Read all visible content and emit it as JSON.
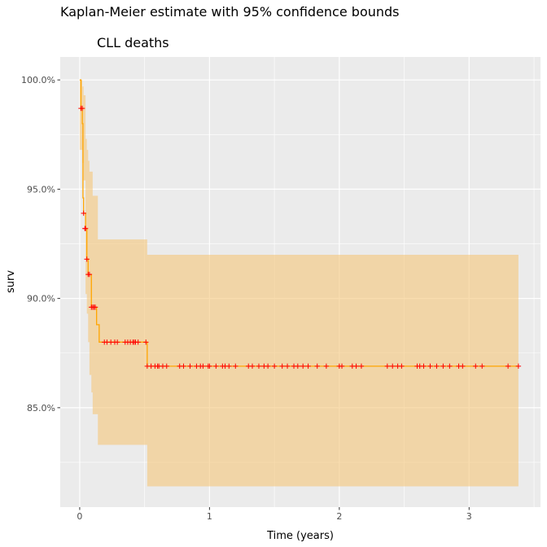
{
  "chart_data": {
    "type": "line",
    "title": "Kaplan-Meier estimate with 95% confidence bounds",
    "subtitle": "CLL deaths",
    "xlabel": "Time (years)",
    "ylabel": "surv",
    "xlim": [
      -0.15,
      3.55
    ],
    "ylim": [
      0.8045,
      1.0105
    ],
    "x_ticks": [
      0,
      1,
      2,
      3
    ],
    "x_tick_labels": [
      "0",
      "1",
      "2",
      "3"
    ],
    "y_ticks": [
      0.85,
      0.9,
      0.95,
      1.0
    ],
    "y_tick_labels": [
      "85.0%",
      "90.0%",
      "95.0%",
      "100.0%"
    ],
    "grid": true,
    "legend": "none",
    "colors": {
      "panel": "#ebebeb",
      "grid": "#ffffff",
      "line": "#ffa500",
      "band": "#f5c77a",
      "censor": "#ff0000"
    },
    "series": [
      {
        "kind": "step",
        "points": [
          [
            0.0,
            1.0
          ],
          [
            0.01,
            0.987
          ],
          [
            0.02,
            0.98
          ],
          [
            0.025,
            0.946
          ],
          [
            0.03,
            0.939
          ],
          [
            0.045,
            0.932
          ],
          [
            0.055,
            0.918
          ],
          [
            0.065,
            0.911
          ],
          [
            0.09,
            0.896
          ],
          [
            0.13,
            0.888
          ],
          [
            0.15,
            0.88
          ],
          [
            0.52,
            0.869
          ],
          [
            3.38,
            0.869
          ]
        ]
      }
    ],
    "confidence_band": [
      [
        0.0,
        0.968,
        1.0
      ],
      [
        0.02,
        0.962,
        0.997
      ],
      [
        0.03,
        0.954,
        0.993
      ],
      [
        0.045,
        0.902,
        0.973
      ],
      [
        0.055,
        0.893,
        0.968
      ],
      [
        0.065,
        0.88,
        0.963
      ],
      [
        0.075,
        0.865,
        0.958
      ],
      [
        0.09,
        0.857,
        0.958
      ],
      [
        0.1,
        0.847,
        0.947
      ],
      [
        0.14,
        0.833,
        0.927
      ],
      [
        0.52,
        0.814,
        0.92
      ],
      [
        3.38,
        0.814,
        0.92
      ]
    ],
    "censored": {
      "x": [
        0.01,
        0.02,
        0.03,
        0.04,
        0.045,
        0.055,
        0.065,
        0.075,
        0.09,
        0.1,
        0.11,
        0.12,
        0.19,
        0.21,
        0.24,
        0.27,
        0.29,
        0.35,
        0.37,
        0.39,
        0.41,
        0.42,
        0.43,
        0.45,
        0.51,
        0.52,
        0.55,
        0.58,
        0.6,
        0.61,
        0.64,
        0.67,
        0.77,
        0.8,
        0.85,
        0.9,
        0.93,
        0.95,
        0.99,
        1.0,
        1.05,
        1.1,
        1.12,
        1.15,
        1.2,
        1.3,
        1.33,
        1.38,
        1.42,
        1.45,
        1.5,
        1.56,
        1.6,
        1.65,
        1.68,
        1.72,
        1.76,
        1.83,
        1.9,
        2.0,
        2.02,
        2.1,
        2.13,
        2.17,
        2.37,
        2.41,
        2.45,
        2.48,
        2.6,
        2.62,
        2.65,
        2.7,
        2.75,
        2.8,
        2.85,
        2.92,
        2.95,
        3.05,
        3.1,
        3.3,
        3.38
      ],
      "y": [
        0.987,
        0.987,
        0.939,
        0.932,
        0.932,
        0.918,
        0.911,
        0.911,
        0.896,
        0.896,
        0.896,
        0.896,
        0.88,
        0.88,
        0.88,
        0.88,
        0.88,
        0.88,
        0.88,
        0.88,
        0.88,
        0.88,
        0.88,
        0.88,
        0.88,
        0.869,
        0.869,
        0.869,
        0.869,
        0.869,
        0.869,
        0.869,
        0.869,
        0.869,
        0.869,
        0.869,
        0.869,
        0.869,
        0.869,
        0.869,
        0.869,
        0.869,
        0.869,
        0.869,
        0.869,
        0.869,
        0.869,
        0.869,
        0.869,
        0.869,
        0.869,
        0.869,
        0.869,
        0.869,
        0.869,
        0.869,
        0.869,
        0.869,
        0.869,
        0.869,
        0.869,
        0.869,
        0.869,
        0.869,
        0.869,
        0.869,
        0.869,
        0.869,
        0.869,
        0.869,
        0.869,
        0.869,
        0.869,
        0.869,
        0.869,
        0.869,
        0.869,
        0.869,
        0.869,
        0.869,
        0.869
      ]
    }
  }
}
